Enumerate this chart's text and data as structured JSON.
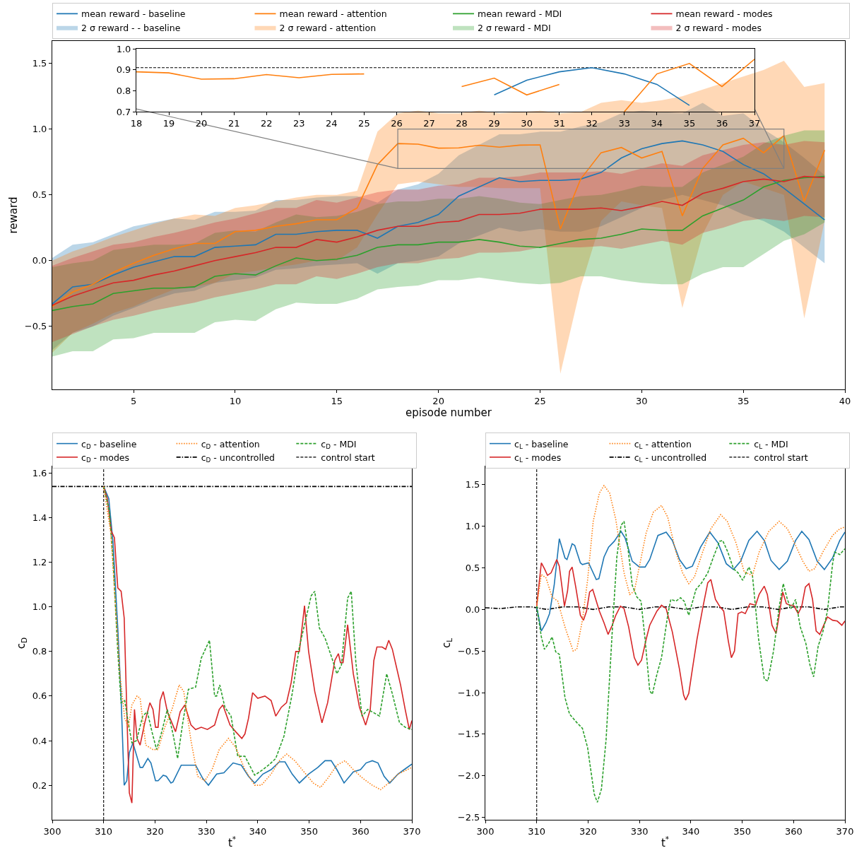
{
  "chart_data": [
    {
      "type": "line",
      "xlabel": "episode number",
      "ylabel": "reward",
      "legend": "top",
      "x": [
        1,
        2,
        3,
        4,
        5,
        6,
        7,
        8,
        9,
        10,
        11,
        12,
        13,
        14,
        15,
        16,
        17,
        18,
        19,
        20,
        21,
        22,
        23,
        24,
        25,
        26,
        27,
        28,
        29,
        30,
        31,
        32,
        33,
        34,
        35,
        36,
        37,
        38,
        39
      ],
      "xlim": [
        1,
        40
      ],
      "xticks": [
        5,
        10,
        15,
        20,
        25,
        30,
        35,
        40
      ],
      "ylim": [
        -0.98,
        1.67
      ],
      "yticks": [
        {
          "value": -0.5,
          "label": "−0.5"
        },
        {
          "value": 0,
          "label": "0.0"
        },
        {
          "value": 0.5,
          "label": "0.5"
        },
        {
          "value": 1,
          "label": "1.0"
        },
        {
          "value": 1.5,
          "label": "1.5"
        }
      ],
      "annotations": [
        "2 σ reward - - baseline",
        "2 σ reward - attention",
        "2 σ reward - MDI",
        "2 σ reward - modes"
      ],
      "series": [
        {
          "name": "mean reward - baseline",
          "color": "#1f77b4",
          "values": [
            -0.33,
            -0.2,
            -0.18,
            -0.11,
            -0.05,
            -0.01,
            0.03,
            0.03,
            0.1,
            0.11,
            0.12,
            0.2,
            0.2,
            0.22,
            0.23,
            0.23,
            0.17,
            0.26,
            0.29,
            0.35,
            0.49,
            0.56,
            0.63,
            0.6,
            0.61,
            0.61,
            0.62,
            0.67,
            0.78,
            0.85,
            0.89,
            0.91,
            0.88,
            0.83,
            0.73,
            0.66,
            0.55,
            0.43,
            0.31
          ],
          "lower": [
            -0.68,
            -0.55,
            -0.5,
            -0.42,
            -0.36,
            -0.3,
            -0.25,
            -0.23,
            -0.17,
            -0.15,
            -0.13,
            -0.07,
            -0.06,
            -0.04,
            -0.03,
            -0.02,
            -0.1,
            -0.02,
            0,
            0.03,
            0.13,
            0.19,
            0.25,
            0.22,
            0.24,
            0.22,
            0.22,
            0.26,
            0.33,
            0.4,
            0.46,
            0.5,
            0.46,
            0.42,
            0.35,
            0.3,
            0.22,
            0.1,
            -0.02
          ],
          "upper": [
            0.02,
            0.12,
            0.14,
            0.2,
            0.26,
            0.29,
            0.32,
            0.31,
            0.37,
            0.37,
            0.38,
            0.46,
            0.46,
            0.48,
            0.49,
            0.49,
            0.44,
            0.54,
            0.58,
            0.66,
            0.8,
            0.88,
            0.96,
            0.96,
            0.98,
            0.98,
            1.02,
            1.05,
            1.12,
            1.14,
            1.13,
            1.12,
            1.2,
            1.1,
            1.12,
            1,
            0.9,
            0.78,
            0.65
          ]
        },
        {
          "name": "mean reward - attention",
          "color": "#ff7f0e",
          "values": [
            -0.35,
            -0.24,
            -0.18,
            -0.09,
            -0.02,
            0.04,
            0.09,
            0.13,
            0.13,
            0.22,
            0.23,
            0.26,
            0.28,
            0.31,
            0.31,
            0.4,
            0.73,
            0.89,
            0.885,
            0.855,
            0.857,
            0.877,
            0.862,
            0.878,
            0.88,
            0.24,
            0.62,
            0.82,
            0.86,
            0.78,
            0.83,
            0.34,
            0.7,
            0.88,
            0.93,
            0.82,
            0.95,
            0.45,
            0.84
          ],
          "lower": [
            -0.7,
            -0.55,
            -0.48,
            -0.4,
            -0.35,
            -0.28,
            -0.22,
            -0.2,
            -0.17,
            -0.1,
            -0.08,
            -0.05,
            -0.03,
            0,
            0,
            0.1,
            0.35,
            0.58,
            0.6,
            0.58,
            0.56,
            0.56,
            0.55,
            0.55,
            0.55,
            -0.86,
            -0.2,
            0.3,
            0.45,
            0.42,
            0.4,
            -0.36,
            0.2,
            0.5,
            0.6,
            0.55,
            0.5,
            -0.44,
            0.3
          ],
          "upper": [
            0,
            0.07,
            0.12,
            0.18,
            0.23,
            0.28,
            0.32,
            0.35,
            0.34,
            0.4,
            0.42,
            0.45,
            0.48,
            0.5,
            0.5,
            0.53,
            0.98,
            1.12,
            1.14,
            1.12,
            1.12,
            1.14,
            1.12,
            1.13,
            1.14,
            1.12,
            1.13,
            1.2,
            1.22,
            1.2,
            1.22,
            1.25,
            1.3,
            1.35,
            1.4,
            1.45,
            1.52,
            1.32,
            1.35
          ]
        },
        {
          "name": "mean reward - MDI",
          "color": "#2ca02c",
          "values": [
            -0.38,
            -0.35,
            -0.33,
            -0.25,
            -0.23,
            -0.21,
            -0.21,
            -0.2,
            -0.12,
            -0.1,
            -0.11,
            -0.04,
            0.02,
            0,
            0.01,
            0.04,
            0.1,
            0.12,
            0.12,
            0.14,
            0.14,
            0.16,
            0.14,
            0.11,
            0.1,
            0.13,
            0.16,
            0.17,
            0.2,
            0.24,
            0.23,
            0.23,
            0.34,
            0.4,
            0.46,
            0.56,
            0.61,
            0.63,
            0.64
          ],
          "lower": [
            -0.73,
            -0.69,
            -0.69,
            -0.6,
            -0.59,
            -0.55,
            -0.55,
            -0.55,
            -0.47,
            -0.45,
            -0.46,
            -0.37,
            -0.32,
            -0.33,
            -0.33,
            -0.29,
            -0.22,
            -0.2,
            -0.19,
            -0.15,
            -0.15,
            -0.13,
            -0.15,
            -0.17,
            -0.18,
            -0.17,
            -0.12,
            -0.12,
            -0.15,
            -0.17,
            -0.18,
            -0.18,
            -0.1,
            -0.05,
            -0.05,
            0.05,
            0.15,
            0.2,
            0.29
          ],
          "upper": [
            -0.05,
            -0.02,
            0,
            0.08,
            0.1,
            0.12,
            0.12,
            0.13,
            0.21,
            0.23,
            0.22,
            0.29,
            0.35,
            0.33,
            0.34,
            0.37,
            0.43,
            0.45,
            0.45,
            0.47,
            0.47,
            0.49,
            0.47,
            0.44,
            0.43,
            0.46,
            0.49,
            0.5,
            0.53,
            0.57,
            0.56,
            0.56,
            0.67,
            0.73,
            0.79,
            0.89,
            0.95,
            0.99,
            0.99
          ]
        },
        {
          "name": "mean reward - modes",
          "color": "#d62728",
          "values": [
            -0.34,
            -0.27,
            -0.22,
            -0.17,
            -0.15,
            -0.11,
            -0.08,
            -0.04,
            0,
            0.03,
            0.06,
            0.1,
            0.1,
            0.16,
            0.14,
            0.18,
            0.23,
            0.26,
            0.26,
            0.29,
            0.3,
            0.35,
            0.35,
            0.36,
            0.39,
            0.39,
            0.39,
            0.4,
            0.38,
            0.41,
            0.45,
            0.42,
            0.51,
            0.55,
            0.6,
            0.62,
            0.6,
            0.64,
            0.63
          ],
          "lower": [
            -0.62,
            -0.56,
            -0.5,
            -0.45,
            -0.42,
            -0.38,
            -0.35,
            -0.32,
            -0.28,
            -0.25,
            -0.22,
            -0.18,
            -0.18,
            -0.12,
            -0.14,
            -0.1,
            -0.05,
            -0.02,
            -0.02,
            0.01,
            0.02,
            0.06,
            0.06,
            0.07,
            0.1,
            0.1,
            0.1,
            0.11,
            0.09,
            0.12,
            0.15,
            0.12,
            0.21,
            0.25,
            0.3,
            0.32,
            0.3,
            0.34,
            0.33
          ],
          "upper": [
            -0.04,
            0.02,
            0.07,
            0.12,
            0.14,
            0.18,
            0.21,
            0.25,
            0.29,
            0.32,
            0.36,
            0.4,
            0.4,
            0.46,
            0.44,
            0.48,
            0.52,
            0.54,
            0.54,
            0.57,
            0.58,
            0.63,
            0.63,
            0.64,
            0.67,
            0.67,
            0.67,
            0.68,
            0.66,
            0.7,
            0.74,
            0.72,
            0.8,
            0.84,
            0.88,
            0.9,
            0.88,
            0.91,
            0.9
          ]
        }
      ]
    },
    {
      "type": "line",
      "x": [
        18,
        19,
        20,
        21,
        22,
        23,
        24,
        25,
        26,
        27,
        28,
        29,
        30,
        31,
        32,
        33,
        34,
        35,
        36,
        37
      ],
      "xlim": [
        18,
        37
      ],
      "xticks": [
        18,
        19,
        20,
        21,
        22,
        23,
        24,
        25,
        26,
        27,
        28,
        29,
        30,
        31,
        32,
        33,
        34,
        35,
        36,
        37
      ],
      "ylim": [
        0.7,
        1.0
      ],
      "yticks": [
        0.7,
        0.8,
        0.9,
        {
          "value": 1,
          "label": "1.0"
        }
      ],
      "ref_lines": [
        {
          "axis": "y",
          "value": 0.91,
          "color": "#000000",
          "line_style": "dashed"
        }
      ],
      "series": [
        {
          "color": "#1f77b4",
          "values": [
            null,
            null,
            null,
            null,
            null,
            null,
            null,
            null,
            null,
            null,
            null,
            0.78,
            0.85,
            0.89,
            0.91,
            0.88,
            0.83,
            0.73,
            null,
            null
          ]
        },
        {
          "color": "#ff7f0e",
          "values": [
            0.89,
            0.885,
            0.855,
            0.857,
            0.877,
            0.862,
            0.878,
            0.88,
            null,
            null,
            0.82,
            0.86,
            0.78,
            0.83,
            null,
            0.7,
            0.88,
            0.93,
            0.82,
            0.95
          ]
        }
      ]
    },
    {
      "type": "line",
      "xlabel": "t$^{*}$",
      "ylabel": "c$_{D}$",
      "legend": "top",
      "xlim": [
        300,
        370
      ],
      "xticks": [
        300,
        310,
        320,
        330,
        340,
        350,
        360,
        370
      ],
      "ylim": [
        0.045,
        1.63
      ],
      "yticks": [
        0.2,
        0.4,
        0.6,
        0.8,
        {
          "value": 1,
          "label": "1.0"
        },
        1.2,
        1.4,
        1.6
      ],
      "ref_lines": [
        {
          "axis": "x",
          "value": 310,
          "label": "control start",
          "color": "#000000",
          "line_style": "dashed"
        }
      ],
      "series": [
        {
          "name": "c$_{D}$ - baseline",
          "color": "#1f77b4",
          "line_style": "solid",
          "x": [
            310,
            311,
            311.8,
            312.75,
            313.4,
            314,
            314.5,
            315,
            315.7,
            317.1,
            317.6,
            318.6,
            319.2,
            320.1,
            320.6,
            321.6,
            322.2,
            323.1,
            323.5,
            325.1,
            326.5,
            327.9,
            329.3,
            330.4,
            332,
            333.4,
            335.2,
            336.8,
            338.2,
            339.4,
            341,
            342.6,
            344.2,
            345.3,
            346.7,
            348.1,
            349.9,
            351.7,
            353.1,
            354.3,
            355.4,
            356.8,
            358.6,
            360,
            361.1,
            362.3,
            363.4,
            364.6,
            365.7,
            367.3,
            368.5,
            370
          ],
          "values": [
            1.54,
            1.486,
            1.296,
            0.905,
            0.59,
            0.2,
            0.22,
            0.346,
            0.39,
            0.28,
            0.28,
            0.32,
            0.3,
            0.22,
            0.22,
            0.245,
            0.24,
            0.21,
            0.215,
            0.29,
            0.29,
            0.29,
            0.23,
            0.2,
            0.25,
            0.256,
            0.3,
            0.29,
            0.24,
            0.21,
            0.25,
            0.27,
            0.305,
            0.305,
            0.25,
            0.21,
            0.25,
            0.28,
            0.31,
            0.31,
            0.27,
            0.21,
            0.26,
            0.27,
            0.3,
            0.31,
            0.3,
            0.24,
            0.21,
            0.25,
            0.27,
            0.295
          ]
        },
        {
          "name": "c$_{D}$ - attention",
          "color": "#ff7f0e",
          "line_style": "dotted",
          "x": [
            310,
            311.4,
            312.3,
            313.2,
            314.1,
            314.8,
            315.5,
            316.5,
            317.1,
            318.2,
            319.6,
            320.6,
            321.9,
            323.3,
            324.7,
            325.6,
            327,
            328.3,
            329.7,
            331.1,
            332.5,
            334.3,
            335.7,
            337.5,
            339.4,
            340.7,
            342.6,
            344.2,
            345.6,
            347.2,
            349,
            350.8,
            352.2,
            353.6,
            355.4,
            357,
            358.6,
            360.5,
            362.3,
            363.9,
            365.5,
            367.3,
            370
          ],
          "values": [
            1.54,
            1.33,
            1.01,
            0.69,
            0.5,
            0.46,
            0.56,
            0.6,
            0.59,
            0.38,
            0.36,
            0.36,
            0.46,
            0.54,
            0.65,
            0.62,
            0.4,
            0.24,
            0.22,
            0.27,
            0.36,
            0.41,
            0.37,
            0.27,
            0.2,
            0.2,
            0.25,
            0.31,
            0.34,
            0.31,
            0.26,
            0.21,
            0.19,
            0.23,
            0.29,
            0.31,
            0.27,
            0.23,
            0.2,
            0.18,
            0.21,
            0.25,
            0.28
          ]
        },
        {
          "name": "c$_{D}$ - MDI",
          "color": "#2ca02c",
          "line_style": "dashed",
          "x": [
            310,
            311.1,
            311.8,
            312.75,
            313.4,
            314.1,
            314.8,
            315.5,
            316.4,
            317.6,
            318.5,
            319.4,
            320.3,
            321.2,
            322.4,
            323.5,
            324.4,
            325.4,
            326.5,
            327.9,
            329,
            330.6,
            331.6,
            332,
            332.6,
            333.6,
            334.8,
            336.1,
            337.5,
            339.4,
            341,
            342.1,
            343.5,
            345.1,
            346.7,
            348.1,
            349.2,
            350.4,
            351.1,
            352,
            353.1,
            354.3,
            355.4,
            356.3,
            357.5,
            358.2,
            359.1,
            360.3,
            361.4,
            362.6,
            363.7,
            365.1,
            366.2,
            367.6,
            368.7,
            370
          ],
          "values": [
            1.54,
            1.43,
            1.22,
            0.8,
            0.57,
            0.58,
            0.48,
            0.39,
            0.4,
            0.51,
            0.53,
            0.44,
            0.36,
            0.43,
            0.54,
            0.43,
            0.32,
            0.48,
            0.63,
            0.64,
            0.77,
            0.85,
            0.6,
            0.6,
            0.65,
            0.55,
            0.51,
            0.33,
            0.33,
            0.245,
            0.27,
            0.29,
            0.32,
            0.42,
            0.61,
            0.82,
            0.93,
            1.05,
            1.07,
            0.905,
            0.86,
            0.78,
            0.7,
            0.74,
            1.04,
            1.07,
            0.75,
            0.51,
            0.54,
            0.525,
            0.51,
            0.7,
            0.61,
            0.48,
            0.46,
            0.45
          ]
        },
        {
          "name": "c$_{D}$ - modes",
          "color": "#d62728",
          "line_style": "solid",
          "x": [
            310,
            310.7,
            311.5,
            312.1,
            312.75,
            313.4,
            314,
            314.6,
            315,
            315.5,
            316,
            316.5,
            317.1,
            318,
            319,
            319.6,
            320.1,
            320.6,
            321,
            321.6,
            322.4,
            324,
            324.9,
            325.8,
            327,
            327.9,
            329,
            330.2,
            331.6,
            332.5,
            333.2,
            334.6,
            335.7,
            336.9,
            337.5,
            338.2,
            339,
            340,
            341.4,
            342.6,
            343.5,
            344.6,
            345.6,
            346.5,
            347.4,
            348.1,
            349.1,
            349.9,
            351.1,
            352.5,
            353.6,
            355,
            355.7,
            356.1,
            356.6,
            357.5,
            358.6,
            359.8,
            361,
            361.9,
            362.6,
            363.2,
            364.2,
            364.9,
            365.5,
            366.2,
            366.9,
            367.8,
            368.7,
            369.5,
            370
          ],
          "values": [
            1.54,
            1.486,
            1.34,
            1.31,
            1.085,
            1.07,
            0.95,
            0.46,
            0.166,
            0.12,
            0.54,
            0.41,
            0.38,
            0.48,
            0.57,
            0.54,
            0.46,
            0.46,
            0.58,
            0.62,
            0.53,
            0.44,
            0.53,
            0.56,
            0.47,
            0.45,
            0.46,
            0.45,
            0.47,
            0.54,
            0.56,
            0.47,
            0.44,
            0.41,
            0.43,
            0.5,
            0.615,
            0.59,
            0.6,
            0.58,
            0.51,
            0.55,
            0.57,
            0.66,
            0.8,
            0.8,
            1.005,
            0.8,
            0.62,
            0.48,
            0.57,
            0.76,
            0.79,
            0.75,
            0.75,
            0.92,
            0.7,
            0.55,
            0.47,
            0.54,
            0.76,
            0.82,
            0.82,
            0.81,
            0.85,
            0.81,
            0.74,
            0.65,
            0.54,
            0.45,
            0.49
          ]
        },
        {
          "name": "c$_{D}$ - uncontrolled",
          "color": "#000000",
          "line_style": "dashdot",
          "x": [
            300,
            305,
            310,
            315,
            320,
            325,
            330,
            335,
            340,
            345,
            350,
            355,
            360,
            365,
            370
          ],
          "values": [
            1.54,
            1.54,
            1.54,
            1.54,
            1.54,
            1.54,
            1.54,
            1.54,
            1.54,
            1.54,
            1.54,
            1.54,
            1.54,
            1.54,
            1.54
          ]
        }
      ]
    },
    {
      "type": "line",
      "xlabel": "t$^{*}$",
      "ylabel": "c$_{L}$",
      "legend": "top",
      "xlim": [
        300,
        370
      ],
      "xticks": [
        300,
        310,
        320,
        330,
        340,
        350,
        360,
        370
      ],
      "ylim": [
        -2.53,
        1.72
      ],
      "yticks": [
        {
          "value": -2.5,
          "label": "−2.5"
        },
        {
          "value": -2,
          "label": "−2.0"
        },
        {
          "value": -1.5,
          "label": "−1.5"
        },
        {
          "value": -1,
          "label": "−1.0"
        },
        {
          "value": -0.5,
          "label": "−0.5"
        },
        {
          "value": 0,
          "label": "0.0"
        },
        0.5,
        {
          "value": 1,
          "label": "1.0"
        },
        1.5
      ],
      "ref_lines": [
        {
          "axis": "x",
          "value": 310,
          "label": "control start",
          "color": "#000000",
          "line_style": "dashed"
        }
      ],
      "series": [
        {
          "name": "c$_{L}$ - baseline",
          "color": "#1f77b4",
          "line_style": "solid",
          "x": [
            310,
            310.9,
            311.8,
            312.5,
            313.4,
            314.4,
            315.5,
            315.9,
            316.9,
            317.4,
            318.5,
            318.9,
            320.1,
            321.6,
            322.1,
            323.1,
            324,
            325.1,
            326.4,
            327.2,
            328.6,
            330,
            331.1,
            332,
            333.6,
            335.2,
            336.4,
            337.8,
            339.1,
            340.3,
            341.9,
            343.7,
            345.3,
            346.9,
            348.3,
            349.7,
            351.3,
            352.9,
            354.3,
            355.6,
            357.2,
            358.8,
            360.4,
            361.6,
            363,
            364.6,
            366,
            367.6,
            369,
            370
          ],
          "values": [
            0.03,
            -0.26,
            -0.16,
            -0.05,
            0.29,
            0.85,
            0.62,
            0.6,
            0.79,
            0.77,
            0.56,
            0.54,
            0.56,
            0.36,
            0.37,
            0.63,
            0.75,
            0.82,
            0.94,
            0.86,
            0.58,
            0.51,
            0.51,
            0.6,
            0.89,
            0.93,
            0.83,
            0.6,
            0.49,
            0.52,
            0.75,
            0.93,
            0.8,
            0.55,
            0.48,
            0.58,
            0.83,
            0.94,
            0.83,
            0.59,
            0.48,
            0.58,
            0.83,
            0.94,
            0.84,
            0.58,
            0.48,
            0.62,
            0.83,
            0.93
          ]
        },
        {
          "name": "c$_{L}$ - attention",
          "color": "#ff7f0e",
          "line_style": "dotted",
          "x": [
            310,
            310.9,
            311.8,
            313,
            314.1,
            315.5,
            317.1,
            317.8,
            318.9,
            319.9,
            321,
            322.2,
            323.1,
            324.2,
            325.4,
            327,
            328.1,
            329,
            330,
            331.3,
            332.7,
            334.3,
            335.5,
            337.1,
            338.4,
            339.6,
            340.7,
            342.3,
            343.9,
            345.8,
            347.1,
            348.8,
            350.4,
            352,
            353.3,
            355.2,
            357.2,
            358.8,
            360.4,
            361.8,
            363,
            364.1,
            365.7,
            367.6,
            369,
            370
          ],
          "values": [
            0.04,
            0.42,
            0.38,
            0.15,
            0.1,
            -0.21,
            -0.5,
            -0.48,
            -0.13,
            0.35,
            1.06,
            1.4,
            1.49,
            1.4,
            1.08,
            0.44,
            0.18,
            0.22,
            0.52,
            0.92,
            1.17,
            1.25,
            1.11,
            0.69,
            0.44,
            0.31,
            0.39,
            0.69,
            0.97,
            1.14,
            1.06,
            0.8,
            0.45,
            0.41,
            0.69,
            0.94,
            1.06,
            0.97,
            0.77,
            0.58,
            0.46,
            0.49,
            0.69,
            0.89,
            0.97,
            0.99
          ]
        },
        {
          "name": "c$_{L}$ - MDI",
          "color": "#2ca02c",
          "line_style": "dashed",
          "x": [
            310,
            310.9,
            311.5,
            312.3,
            313,
            313.7,
            314.4,
            315.5,
            316.4,
            317.8,
            318.9,
            319.9,
            320.8,
            321.2,
            321.8,
            322.6,
            323.5,
            324.7,
            325.6,
            326.4,
            327,
            327.7,
            328.6,
            329.5,
            330.3,
            331.1,
            332,
            332.5,
            333.4,
            334.3,
            335.5,
            336.1,
            337.1,
            338,
            338.7,
            339.6,
            341,
            342.1,
            343.3,
            344.4,
            345.6,
            346.2,
            347.2,
            348.3,
            349.2,
            350.1,
            351.3,
            352,
            353.2,
            354.3,
            355,
            356.1,
            357.3,
            358,
            358.8,
            359.5,
            360.4,
            361.3,
            362.4,
            363.2,
            363.9,
            364.8,
            365.7,
            366.6,
            367.6,
            368,
            369,
            370
          ],
          "values": [
            0.04,
            -0.33,
            -0.48,
            -0.41,
            -0.33,
            -0.51,
            -0.54,
            -1.06,
            -1.26,
            -1.36,
            -1.43,
            -1.66,
            -2.05,
            -2.22,
            -2.32,
            -2.16,
            -1.57,
            -0.27,
            0.63,
            1.01,
            1.06,
            0.77,
            0.29,
            0.15,
            0.1,
            -0.36,
            -0.98,
            -1.02,
            -0.78,
            -0.58,
            -0.07,
            0.12,
            0.1,
            0.14,
            0.1,
            -0.07,
            0.24,
            0.32,
            0.44,
            0.63,
            0.82,
            0.83,
            0.69,
            0.49,
            0.44,
            0.35,
            0.51,
            0.41,
            -0.36,
            -0.84,
            -0.86,
            -0.5,
            0.07,
            0.31,
            0.12,
            0.01,
            0.12,
            -0.21,
            -0.41,
            -0.67,
            -0.81,
            -0.44,
            -0.27,
            -0.02,
            0.55,
            0.69,
            0.66,
            0.73
          ]
        },
        {
          "name": "c$_{L}$ - modes",
          "color": "#d62728",
          "line_style": "solid",
          "x": [
            310,
            310.9,
            311.5,
            312.1,
            312.8,
            313.9,
            314.4,
            315.4,
            316,
            316.4,
            316.9,
            317.6,
            318.5,
            319.1,
            319.7,
            320.3,
            320.9,
            321.6,
            322.2,
            323.1,
            323.9,
            324.7,
            325.4,
            326.3,
            327,
            327.9,
            329,
            329.7,
            330.4,
            331.3,
            332,
            333.4,
            334.3,
            335.2,
            336.4,
            337.8,
            338.6,
            339,
            339.6,
            340.3,
            341.2,
            342.3,
            343.3,
            343.9,
            344.8,
            345.7,
            346.4,
            347.3,
            347.9,
            348.5,
            349.2,
            349.9,
            350.6,
            351.5,
            352.6,
            353.3,
            354.3,
            354.9,
            355.8,
            356.6,
            357.2,
            357.9,
            358.6,
            359.3,
            360,
            360.9,
            361.6,
            362.3,
            363,
            363.7,
            364.4,
            365.1,
            365.8,
            366.6,
            367.6,
            368.5,
            369.4,
            370
          ],
          "values": [
            0.04,
            0.56,
            0.49,
            0.41,
            0.44,
            0.6,
            0.52,
            0.04,
            0.22,
            0.46,
            0.51,
            0.27,
            -0.07,
            -0.13,
            -0.02,
            0.21,
            0.24,
            0.1,
            -0.02,
            -0.16,
            -0.3,
            -0.19,
            -0.07,
            0.04,
            0.01,
            -0.21,
            -0.58,
            -0.67,
            -0.61,
            -0.36,
            -0.19,
            -0.02,
            0.05,
            0.01,
            -0.27,
            -0.72,
            -1.03,
            -1.09,
            -1.01,
            -0.72,
            -0.36,
            0.01,
            0.32,
            0.36,
            0.12,
            0.03,
            -0.02,
            -0.38,
            -0.58,
            -0.5,
            -0.05,
            -0.03,
            -0.05,
            0.07,
            0.05,
            0.18,
            0.28,
            0.18,
            -0.19,
            -0.29,
            -0.07,
            0.21,
            0.07,
            0.05,
            0.05,
            -0.05,
            0.04,
            0.27,
            0.31,
            0.12,
            -0.26,
            -0.3,
            -0.2,
            -0.09,
            -0.13,
            -0.14,
            -0.19,
            -0.14
          ]
        },
        {
          "name": "c$_{L}$ - uncontrolled",
          "color": "#000000",
          "line_style": "dashdot",
          "x": [
            300,
            303,
            306,
            309,
            312,
            315,
            318,
            321,
            324,
            327,
            330,
            333,
            336,
            339,
            342,
            345,
            348,
            351,
            354,
            357,
            360,
            363,
            366,
            369,
            370
          ],
          "values": [
            0.02,
            0.01,
            0.03,
            0.03,
            0,
            0.03,
            0.03,
            0,
            0.03,
            0.03,
            0,
            0.03,
            0.03,
            0,
            0.03,
            0.03,
            0,
            0.03,
            0.03,
            0,
            0.03,
            0.03,
            0,
            0.03,
            0.03
          ]
        }
      ]
    }
  ]
}
